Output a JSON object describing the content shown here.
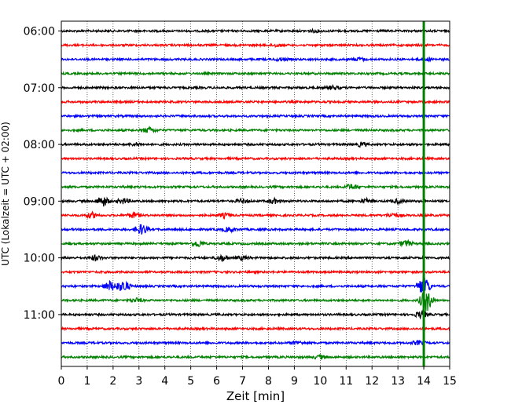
{
  "chart_data": {
    "type": "line",
    "title": "",
    "xlabel": "Zeit  [min]",
    "ylabel": "UTC (Lokalzeit = UTC + 02:00)",
    "xlim": [
      0,
      15
    ],
    "x_ticks": [
      "0",
      "1",
      "2",
      "3",
      "4",
      "5",
      "6",
      "7",
      "8",
      "9",
      "10",
      "11",
      "12",
      "13",
      "14",
      "15"
    ],
    "y_tick_labels": [
      "06:00",
      "07:00",
      "08:00",
      "09:00",
      "10:00",
      "11:00"
    ],
    "grid": "vertical dotted",
    "trace_interval_minutes": 15,
    "start_time": "06:00",
    "trace_colors": [
      "#000000",
      "#ff0000",
      "#0000ff",
      "#008000"
    ],
    "traces": 24,
    "events": [
      {
        "row": 0,
        "x": 9.8,
        "amp": 0.8
      },
      {
        "row": 1,
        "x": 8.3,
        "amp": 1.0
      },
      {
        "row": 2,
        "x": 11.5,
        "amp": 1.2
      },
      {
        "row": 2,
        "x": 8.5,
        "amp": 1.0
      },
      {
        "row": 2,
        "x": 14.1,
        "amp": 1.0
      },
      {
        "row": 4,
        "x": 10.5,
        "amp": 1.5
      },
      {
        "row": 7,
        "x": 3.4,
        "amp": 2.0
      },
      {
        "row": 8,
        "x": 11.6,
        "amp": 1.5
      },
      {
        "row": 8,
        "x": 2.9,
        "amp": 1.0
      },
      {
        "row": 11,
        "x": 11.2,
        "amp": 2.0
      },
      {
        "row": 12,
        "x": 1.6,
        "amp": 4.0
      },
      {
        "row": 12,
        "x": 2.4,
        "amp": 2.0
      },
      {
        "row": 12,
        "x": 7.0,
        "amp": 1.5
      },
      {
        "row": 12,
        "x": 8.2,
        "amp": 1.8
      },
      {
        "row": 12,
        "x": 11.8,
        "amp": 1.5
      },
      {
        "row": 12,
        "x": 13.0,
        "amp": 1.5
      },
      {
        "row": 13,
        "x": 1.2,
        "amp": 2.0
      },
      {
        "row": 13,
        "x": 2.8,
        "amp": 2.0
      },
      {
        "row": 13,
        "x": 6.3,
        "amp": 1.5
      },
      {
        "row": 13,
        "x": 12.8,
        "amp": 1.5
      },
      {
        "row": 14,
        "x": 3.1,
        "amp": 4.0
      },
      {
        "row": 14,
        "x": 6.5,
        "amp": 1.8
      },
      {
        "row": 15,
        "x": 5.3,
        "amp": 2.5
      },
      {
        "row": 15,
        "x": 13.3,
        "amp": 2.5
      },
      {
        "row": 16,
        "x": 1.3,
        "amp": 2.0
      },
      {
        "row": 16,
        "x": 6.2,
        "amp": 2.2
      },
      {
        "row": 16,
        "x": 7.0,
        "amp": 1.5
      },
      {
        "row": 18,
        "x": 1.9,
        "amp": 4.0
      },
      {
        "row": 18,
        "x": 2.4,
        "amp": 4.5
      },
      {
        "row": 18,
        "x": 14.0,
        "amp": 8.0
      },
      {
        "row": 19,
        "x": 14.1,
        "amp": 9.0
      },
      {
        "row": 19,
        "x": 2.9,
        "amp": 1.5
      },
      {
        "row": 20,
        "x": 13.9,
        "amp": 2.5
      },
      {
        "row": 22,
        "x": 9.1,
        "amp": 1.2
      },
      {
        "row": 22,
        "x": 13.8,
        "amp": 1.5
      },
      {
        "row": 23,
        "x": 10.0,
        "amp": 1.5
      }
    ],
    "vertical_marker": {
      "x": 14.0,
      "color": "#008000"
    }
  }
}
